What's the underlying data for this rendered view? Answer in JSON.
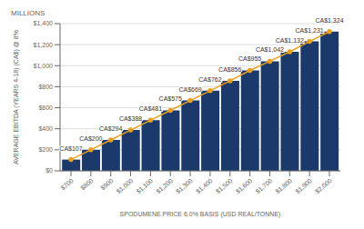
{
  "chart_data": {
    "type": "bar",
    "x_label": "SPODUMENE PRICE 6.0% BASIS (USD REAL/TONNE)",
    "y_label": "AVERAGE EBITDA (YEARS 4-18) (CA$) @ 8%",
    "annotations": [
      "MILLIONS"
    ],
    "x": [
      700,
      800,
      900,
      1000,
      1100,
      1200,
      1300,
      1400,
      1500,
      1600,
      1700,
      1800,
      1900,
      2000
    ],
    "series": [
      {
        "type": "bar",
        "color": "#1b3a6b",
        "values": [
          107,
          200,
          294,
          388,
          481,
          575,
          669,
          762,
          856,
          955,
          1042,
          1132,
          1231,
          1324
        ]
      },
      {
        "type": "line",
        "color": "#e8a020",
        "marker": "circle",
        "values": [
          107,
          200,
          294,
          388,
          481,
          575,
          669,
          762,
          856,
          955,
          1042,
          1132,
          1231,
          1324
        ],
        "value_labels": [
          "CA$107",
          "CA$200",
          "CA$294",
          "CA$388",
          "CA$481",
          "CA$575",
          "CA$669",
          "CA$762",
          "CA$856",
          "CA$955",
          "CA$1,042",
          "CA$1,132",
          "CA$1,231",
          "CA$1,324"
        ]
      }
    ],
    "data_labels": true,
    "xlim": [
      645,
      2055
    ],
    "xticks": [
      {
        "value": 700,
        "label": "$700"
      },
      {
        "value": 800,
        "label": "$800"
      },
      {
        "value": 900,
        "label": "$900"
      },
      {
        "value": 1000,
        "label": "$1,000"
      },
      {
        "value": 1100,
        "label": "$1,100"
      },
      {
        "value": 1200,
        "label": "$1,200"
      },
      {
        "value": 1300,
        "label": "$1,300"
      },
      {
        "value": 1400,
        "label": "$1,400"
      },
      {
        "value": 1500,
        "label": "$1,500"
      },
      {
        "value": 1600,
        "label": "$1,600"
      },
      {
        "value": 1700,
        "label": "$1,700"
      },
      {
        "value": 1800,
        "label": "$1,800"
      },
      {
        "value": 1900,
        "label": "$1,900"
      },
      {
        "value": 2000,
        "label": "$2,000"
      }
    ],
    "ylim": [
      0,
      1400
    ],
    "yticks": [
      {
        "value": 0,
        "label": "$0"
      },
      {
        "value": 200,
        "label": "$200"
      },
      {
        "value": 400,
        "label": "$400"
      },
      {
        "value": 600,
        "label": "$600"
      },
      {
        "value": 800,
        "label": "$800"
      },
      {
        "value": 1000,
        "label": "$1,000"
      },
      {
        "value": 1200,
        "label": "$1,200"
      },
      {
        "value": 1400,
        "label": "$1,400"
      }
    ],
    "grid": true
  }
}
